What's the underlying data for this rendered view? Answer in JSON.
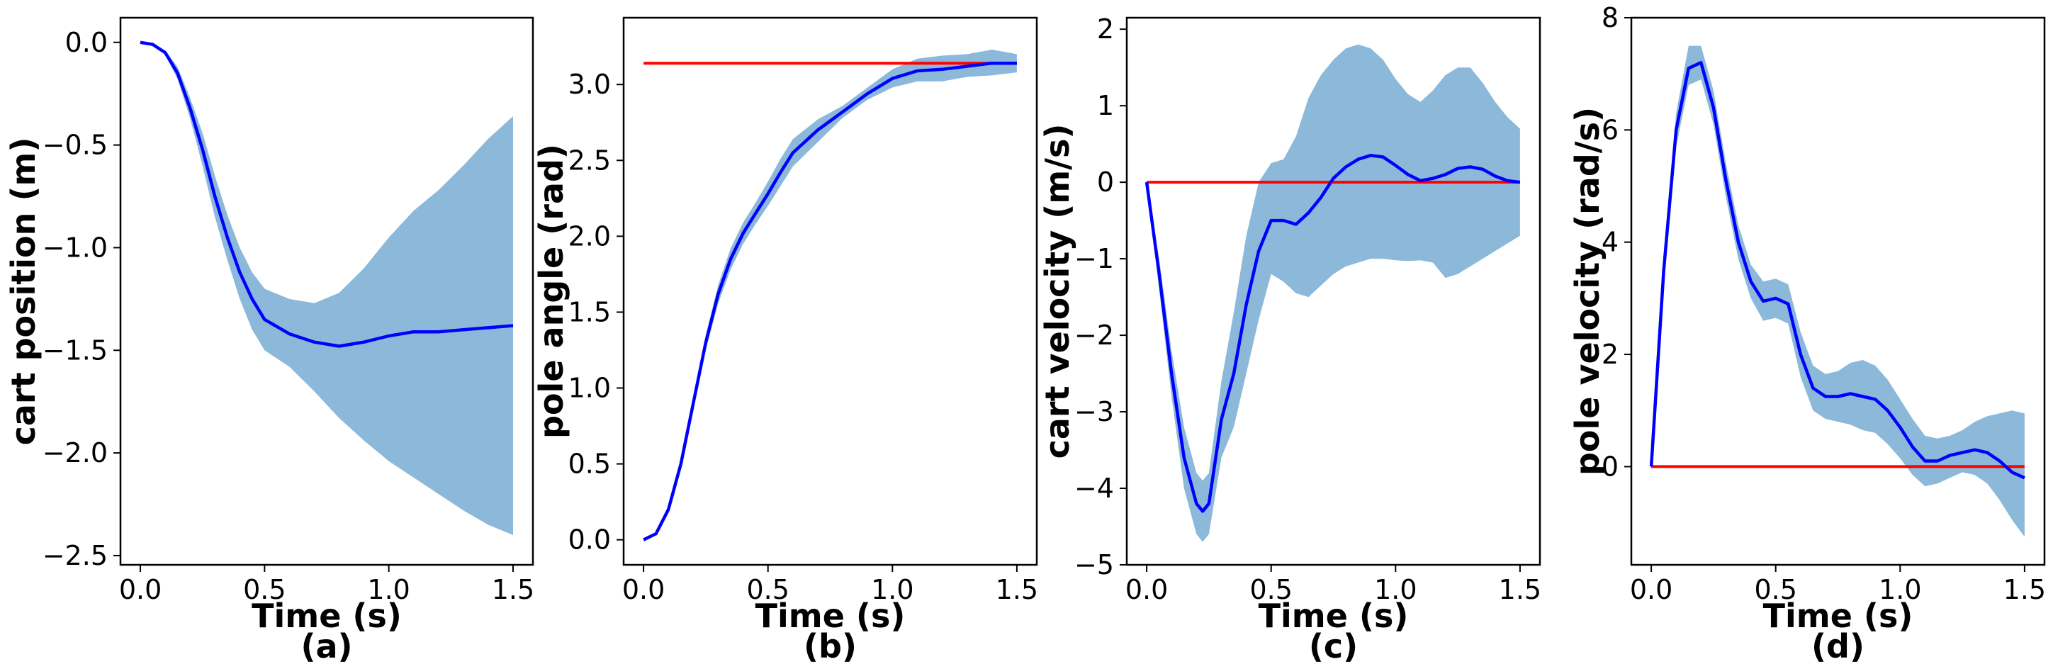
{
  "figure": {
    "colors": {
      "band": "#8cb9da",
      "mean": "#0000ff",
      "target": "#ff0000",
      "axes": "#000000"
    }
  },
  "chart_data": [
    {
      "type": "line",
      "caption": "(a)",
      "xlabel": "Time (s)",
      "ylabel": "cart position (m)",
      "xlim": [
        -0.08,
        1.58
      ],
      "ylim": [
        -2.545,
        0.12
      ],
      "xticks": [
        0.0,
        0.5,
        1.0,
        1.5
      ],
      "xtick_labels": [
        "0.0",
        "0.5",
        "1.0",
        "1.5"
      ],
      "yticks": [
        0.0,
        -0.5,
        -1.0,
        -1.5,
        -2.0,
        -2.5
      ],
      "ytick_labels": [
        "0.0",
        "−0.5",
        "−1.0",
        "−1.5",
        "−2.0",
        "−2.5"
      ],
      "x": [
        0.0,
        0.05,
        0.1,
        0.15,
        0.2,
        0.25,
        0.3,
        0.35,
        0.4,
        0.45,
        0.5,
        0.6,
        0.7,
        0.8,
        0.9,
        1.0,
        1.1,
        1.2,
        1.3,
        1.4,
        1.5
      ],
      "mean": [
        0.0,
        -0.01,
        -0.05,
        -0.15,
        -0.32,
        -0.52,
        -0.75,
        -0.95,
        -1.12,
        -1.25,
        -1.35,
        -1.42,
        -1.46,
        -1.48,
        -1.46,
        -1.43,
        -1.41,
        -1.41,
        -1.4,
        -1.39,
        -1.38
      ],
      "upper": [
        0.0,
        -0.01,
        -0.04,
        -0.12,
        -0.27,
        -0.44,
        -0.65,
        -0.84,
        -1.0,
        -1.12,
        -1.2,
        -1.25,
        -1.27,
        -1.22,
        -1.1,
        -0.95,
        -0.82,
        -0.72,
        -0.6,
        -0.47,
        -0.36
      ],
      "lower": [
        0.0,
        -0.01,
        -0.06,
        -0.18,
        -0.37,
        -0.6,
        -0.85,
        -1.06,
        -1.25,
        -1.4,
        -1.5,
        -1.58,
        -1.7,
        -1.83,
        -1.94,
        -2.04,
        -2.12,
        -2.2,
        -2.28,
        -2.35,
        -2.4
      ],
      "target": null,
      "series_names": [
        "mean",
        "uncertainty band"
      ]
    },
    {
      "type": "line",
      "caption": "(b)",
      "xlabel": "Time (s)",
      "ylabel": "pole angle (rad)",
      "xlim": [
        -0.08,
        1.58
      ],
      "ylim": [
        -0.165,
        3.44
      ],
      "xticks": [
        0.0,
        0.5,
        1.0,
        1.5
      ],
      "xtick_labels": [
        "0.0",
        "0.5",
        "1.0",
        "1.5"
      ],
      "yticks": [
        0.0,
        0.5,
        1.0,
        1.5,
        2.0,
        2.5,
        3.0
      ],
      "ytick_labels": [
        "0.0",
        "0.5",
        "1.0",
        "1.5",
        "2.0",
        "2.5",
        "3.0"
      ],
      "x": [
        0.0,
        0.05,
        0.1,
        0.15,
        0.2,
        0.25,
        0.3,
        0.35,
        0.4,
        0.45,
        0.5,
        0.55,
        0.6,
        0.7,
        0.8,
        0.9,
        1.0,
        1.1,
        1.2,
        1.3,
        1.4,
        1.5
      ],
      "mean": [
        0.0,
        0.04,
        0.2,
        0.5,
        0.9,
        1.3,
        1.62,
        1.85,
        2.02,
        2.15,
        2.28,
        2.42,
        2.55,
        2.7,
        2.82,
        2.94,
        3.04,
        3.09,
        3.1,
        3.12,
        3.14,
        3.14
      ],
      "upper": [
        0.0,
        0.05,
        0.22,
        0.53,
        0.94,
        1.35,
        1.68,
        1.92,
        2.09,
        2.22,
        2.36,
        2.51,
        2.64,
        2.77,
        2.86,
        2.98,
        3.1,
        3.17,
        3.19,
        3.2,
        3.23,
        3.2
      ],
      "lower": [
        0.0,
        0.03,
        0.18,
        0.47,
        0.86,
        1.25,
        1.56,
        1.78,
        1.95,
        2.08,
        2.2,
        2.33,
        2.46,
        2.62,
        2.78,
        2.9,
        2.98,
        3.02,
        3.02,
        3.05,
        3.06,
        3.08
      ],
      "target": 3.14,
      "series_names": [
        "mean",
        "uncertainty band",
        "target"
      ]
    },
    {
      "type": "line",
      "caption": "(c)",
      "xlabel": "Time (s)",
      "ylabel": "cart velocity (m/s)",
      "xlim": [
        -0.08,
        1.58
      ],
      "ylim": [
        -5.0,
        2.15
      ],
      "xticks": [
        0.0,
        0.5,
        1.0,
        1.5
      ],
      "xtick_labels": [
        "0.0",
        "0.5",
        "1.0",
        "1.5"
      ],
      "yticks": [
        2,
        1,
        0,
        -1,
        -2,
        -3,
        -4,
        -5
      ],
      "ytick_labels": [
        "2",
        "1",
        "0",
        "−1",
        "−2",
        "−3",
        "−4",
        "−5"
      ],
      "x": [
        0.0,
        0.05,
        0.1,
        0.15,
        0.2,
        0.225,
        0.25,
        0.3,
        0.35,
        0.4,
        0.45,
        0.5,
        0.55,
        0.6,
        0.65,
        0.7,
        0.75,
        0.8,
        0.85,
        0.9,
        0.95,
        1.0,
        1.05,
        1.1,
        1.15,
        1.2,
        1.25,
        1.3,
        1.35,
        1.4,
        1.45,
        1.5
      ],
      "mean": [
        0.0,
        -1.2,
        -2.5,
        -3.6,
        -4.2,
        -4.3,
        -4.2,
        -3.1,
        -2.5,
        -1.6,
        -0.9,
        -0.5,
        -0.5,
        -0.55,
        -0.4,
        -0.2,
        0.05,
        0.2,
        0.3,
        0.35,
        0.33,
        0.22,
        0.1,
        0.02,
        0.05,
        0.1,
        0.18,
        0.2,
        0.17,
        0.08,
        0.02,
        0.0
      ],
      "upper": [
        0.0,
        -1.0,
        -2.2,
        -3.2,
        -3.8,
        -3.9,
        -3.8,
        -2.6,
        -1.7,
        -0.7,
        0.0,
        0.25,
        0.3,
        0.6,
        1.1,
        1.4,
        1.6,
        1.75,
        1.8,
        1.75,
        1.6,
        1.35,
        1.15,
        1.05,
        1.2,
        1.4,
        1.5,
        1.5,
        1.3,
        1.05,
        0.85,
        0.7
      ],
      "lower": [
        0.0,
        -1.4,
        -2.8,
        -4.0,
        -4.6,
        -4.7,
        -4.6,
        -3.6,
        -3.2,
        -2.5,
        -1.8,
        -1.2,
        -1.3,
        -1.45,
        -1.5,
        -1.35,
        -1.2,
        -1.1,
        -1.05,
        -1.0,
        -1.0,
        -1.02,
        -1.03,
        -1.02,
        -1.05,
        -1.25,
        -1.2,
        -1.1,
        -1.0,
        -0.9,
        -0.8,
        -0.7
      ],
      "target": 0.0,
      "series_names": [
        "mean",
        "uncertainty band",
        "target"
      ]
    },
    {
      "type": "line",
      "caption": "(d)",
      "xlabel": "Time (s)",
      "ylabel": "pole velocity (rad/s)",
      "xlim": [
        -0.08,
        1.58
      ],
      "ylim": [
        -1.75,
        8.0
      ],
      "xticks": [
        0.0,
        0.5,
        1.0,
        1.5
      ],
      "xtick_labels": [
        "0.0",
        "0.5",
        "1.0",
        "1.5"
      ],
      "yticks": [
        0,
        2,
        4,
        6,
        8
      ],
      "ytick_labels": [
        "0",
        "2",
        "4",
        "6",
        "8"
      ],
      "x": [
        0.0,
        0.05,
        0.1,
        0.15,
        0.2,
        0.25,
        0.3,
        0.35,
        0.4,
        0.45,
        0.5,
        0.55,
        0.6,
        0.65,
        0.7,
        0.75,
        0.8,
        0.85,
        0.9,
        0.95,
        1.0,
        1.05,
        1.1,
        1.15,
        1.2,
        1.25,
        1.3,
        1.35,
        1.4,
        1.45,
        1.5
      ],
      "mean": [
        0.0,
        3.5,
        6.0,
        7.1,
        7.2,
        6.4,
        5.1,
        4.0,
        3.3,
        2.95,
        3.0,
        2.9,
        2.0,
        1.4,
        1.25,
        1.25,
        1.3,
        1.25,
        1.2,
        1.0,
        0.7,
        0.35,
        0.1,
        0.1,
        0.2,
        0.25,
        0.3,
        0.25,
        0.1,
        -0.1,
        -0.2
      ],
      "upper": [
        0.0,
        3.7,
        6.3,
        7.5,
        7.5,
        6.7,
        5.4,
        4.3,
        3.6,
        3.3,
        3.35,
        3.25,
        2.4,
        1.8,
        1.65,
        1.7,
        1.85,
        1.9,
        1.8,
        1.55,
        1.2,
        0.85,
        0.55,
        0.5,
        0.55,
        0.65,
        0.8,
        0.9,
        0.95,
        1.0,
        0.95
      ],
      "lower": [
        0.0,
        3.3,
        5.7,
        6.8,
        6.9,
        6.1,
        4.8,
        3.7,
        3.0,
        2.6,
        2.65,
        2.55,
        1.6,
        1.0,
        0.85,
        0.8,
        0.75,
        0.65,
        0.6,
        0.4,
        0.15,
        -0.15,
        -0.35,
        -0.3,
        -0.2,
        -0.1,
        -0.15,
        -0.3,
        -0.6,
        -0.95,
        -1.25
      ],
      "target": 0.0,
      "series_names": [
        "mean",
        "uncertainty band",
        "target"
      ]
    }
  ]
}
